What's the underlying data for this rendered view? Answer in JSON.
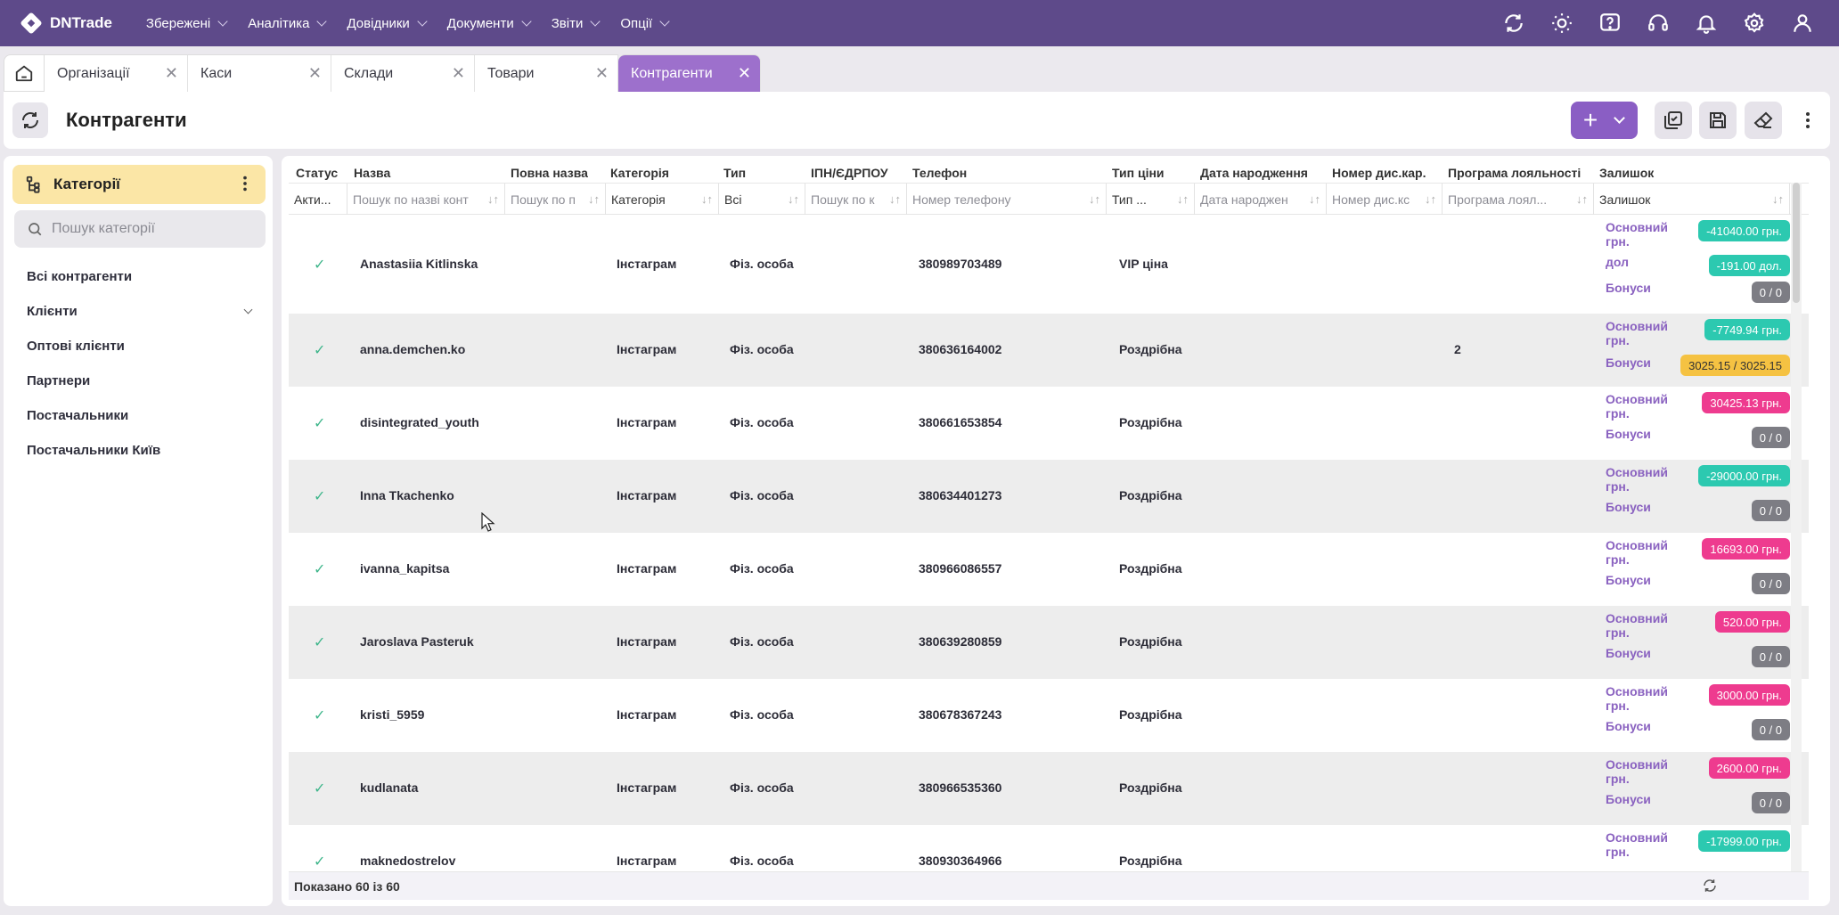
{
  "app": {
    "name": "DNTrade"
  },
  "menu": [
    {
      "label": "Збережені"
    },
    {
      "label": "Аналітика"
    },
    {
      "label": "Довідники"
    },
    {
      "label": "Документи"
    },
    {
      "label": "Звіти"
    },
    {
      "label": "Опції"
    }
  ],
  "tabs": [
    {
      "label": "Організації"
    },
    {
      "label": "Каси"
    },
    {
      "label": "Склади"
    },
    {
      "label": "Товари"
    },
    {
      "label": "Контрагенти"
    }
  ],
  "page": {
    "title": "Контрагенти"
  },
  "sidebar": {
    "header": "Категорії",
    "search_placeholder": "Пошук категорії",
    "items": [
      {
        "label": "Всі контрагенти"
      },
      {
        "label": "Клієнти"
      },
      {
        "label": "Оптові клієнти"
      },
      {
        "label": "Партнери"
      },
      {
        "label": "Постачальники"
      },
      {
        "label": "Постачальники Київ"
      }
    ]
  },
  "table": {
    "columns": [
      "Статус",
      "Назва",
      "Повна назва",
      "Категорія",
      "Тип",
      "ІПН/ЄДРПОУ",
      "Телефон",
      "Тип ціни",
      "Дата народження",
      "Номер дис.кар.",
      "Програма лояльності",
      "Залишок"
    ],
    "filters": {
      "status": "Акти...",
      "name": "Пошук по назві конт",
      "full_name": "Пошук по п",
      "category": "Категорія",
      "type": "Всі",
      "tax_id": "Пошук по к",
      "phone": "Номер телефону",
      "price_type": "Тип ...",
      "birth_date": "Дата народжен",
      "card_number": "Номер дис.кс",
      "loyalty": "Програма лоял...",
      "balance": "Залишок"
    },
    "balance_labels": {
      "main": "Основний грн.",
      "usd": "дол",
      "bonus": "Бонуси"
    },
    "rows": [
      {
        "name": "Anastasiia Kitlinska",
        "category": "Інстаграм",
        "type": "Фіз. особа",
        "phone": "380989703489",
        "price_type": "VIP ціна",
        "loyalty": "",
        "main": "-41040.00 грн.",
        "usd": "-191.00 дол.",
        "bonus": "0 / 0"
      },
      {
        "name": "anna.demchen.ko",
        "category": "Інстаграм",
        "type": "Фіз. особа",
        "phone": "380636164002",
        "price_type": "Роздрібна",
        "loyalty": "2",
        "main": "-7749.94 грн.",
        "bonus": "3025.15 / 3025.15"
      },
      {
        "name": "disintegrated_youth",
        "category": "Інстаграм",
        "type": "Фіз. особа",
        "phone": "380661653854",
        "price_type": "Роздрібна",
        "loyalty": "",
        "main": "30425.13 грн.",
        "bonus": "0 / 0"
      },
      {
        "name": "Inna Tkachenko",
        "category": "Інстаграм",
        "type": "Фіз. особа",
        "phone": "380634401273",
        "price_type": "Роздрібна",
        "loyalty": "",
        "main": "-29000.00 грн.",
        "bonus": "0 / 0"
      },
      {
        "name": "ivanna_kapitsa",
        "category": "Інстаграм",
        "type": "Фіз. особа",
        "phone": "380966086557",
        "price_type": "Роздрібна",
        "loyalty": "",
        "main": "16693.00 грн.",
        "bonus": "0 / 0"
      },
      {
        "name": "Jaroslava Pasteruk",
        "category": "Інстаграм",
        "type": "Фіз. особа",
        "phone": "380639280859",
        "price_type": "Роздрібна",
        "loyalty": "",
        "main": "520.00 грн.",
        "bonus": "0 / 0"
      },
      {
        "name": "kristi_5959",
        "category": "Інстаграм",
        "type": "Фіз. особа",
        "phone": "380678367243",
        "price_type": "Роздрібна",
        "loyalty": "",
        "main": "3000.00 грн.",
        "bonus": "0 / 0"
      },
      {
        "name": "kudlanata",
        "category": "Інстаграм",
        "type": "Фіз. особа",
        "phone": "380966535360",
        "price_type": "Роздрібна",
        "loyalty": "",
        "main": "2600.00 грн.",
        "bonus": "0 / 0"
      },
      {
        "name": "maknedostrelov",
        "category": "Інстаграм",
        "type": "Фіз. особа",
        "phone": "380930364966",
        "price_type": "Роздрібна",
        "loyalty": "",
        "main": "-17999.00 грн.",
        "bonus": ""
      }
    ],
    "footer": "Показано 60 із 60"
  },
  "colors": {
    "topbar": "#5e4a8a",
    "accent": "#9d70cc",
    "badge_negative": "#2cc9b0",
    "badge_positive": "#ee3b8f",
    "badge_bonus": "#7d7d84",
    "badge_bonus_active": "#f5c242",
    "category_header": "#fbe6a6"
  }
}
